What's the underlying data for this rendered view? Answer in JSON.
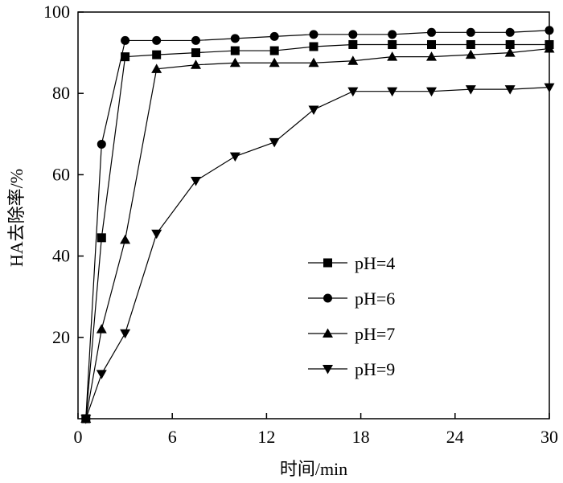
{
  "chart_data": {
    "type": "line",
    "xlabel": "时间/min",
    "ylabel": "HA去除率/%",
    "xlim": [
      0,
      30
    ],
    "ylim": [
      0,
      100
    ],
    "xticks": [
      0,
      6,
      12,
      18,
      24,
      30
    ],
    "yticks": [
      20,
      40,
      60,
      80,
      100
    ],
    "grid": false,
    "legend_position": "lower-right",
    "series": [
      {
        "name": "pH=4",
        "marker": "square",
        "x": [
          0.5,
          1.5,
          3,
          5,
          7.5,
          10,
          12.5,
          15,
          17.5,
          20,
          22.5,
          25,
          27.5,
          30
        ],
        "y": [
          0,
          44.5,
          89,
          89.5,
          90,
          90.5,
          90.5,
          91.5,
          92,
          92,
          92,
          92,
          92,
          92
        ]
      },
      {
        "name": "pH=6",
        "marker": "circle",
        "x": [
          0.5,
          1.5,
          3,
          5,
          7.5,
          10,
          12.5,
          15,
          17.5,
          20,
          22.5,
          25,
          27.5,
          30
        ],
        "y": [
          0,
          67.5,
          93,
          93,
          93,
          93.5,
          94,
          94.5,
          94.5,
          94.5,
          95,
          95,
          95,
          95.5
        ]
      },
      {
        "name": "pH=7",
        "marker": "triangle-up",
        "x": [
          0.5,
          1.5,
          3,
          5,
          7.5,
          10,
          12.5,
          15,
          17.5,
          20,
          22.5,
          25,
          27.5,
          30
        ],
        "y": [
          0,
          22,
          44,
          86,
          87,
          87.5,
          87.5,
          87.5,
          88,
          89,
          89,
          89.5,
          90,
          91
        ]
      },
      {
        "name": "pH=9",
        "marker": "triangle-down",
        "x": [
          0.5,
          1.5,
          3,
          5,
          7.5,
          10,
          12.5,
          15,
          17.5,
          20,
          22.5,
          25,
          27.5,
          30
        ],
        "y": [
          0,
          11,
          21,
          45.5,
          58.5,
          64.5,
          68,
          76,
          80.5,
          80.5,
          80.5,
          81,
          81,
          81.5
        ]
      }
    ]
  }
}
